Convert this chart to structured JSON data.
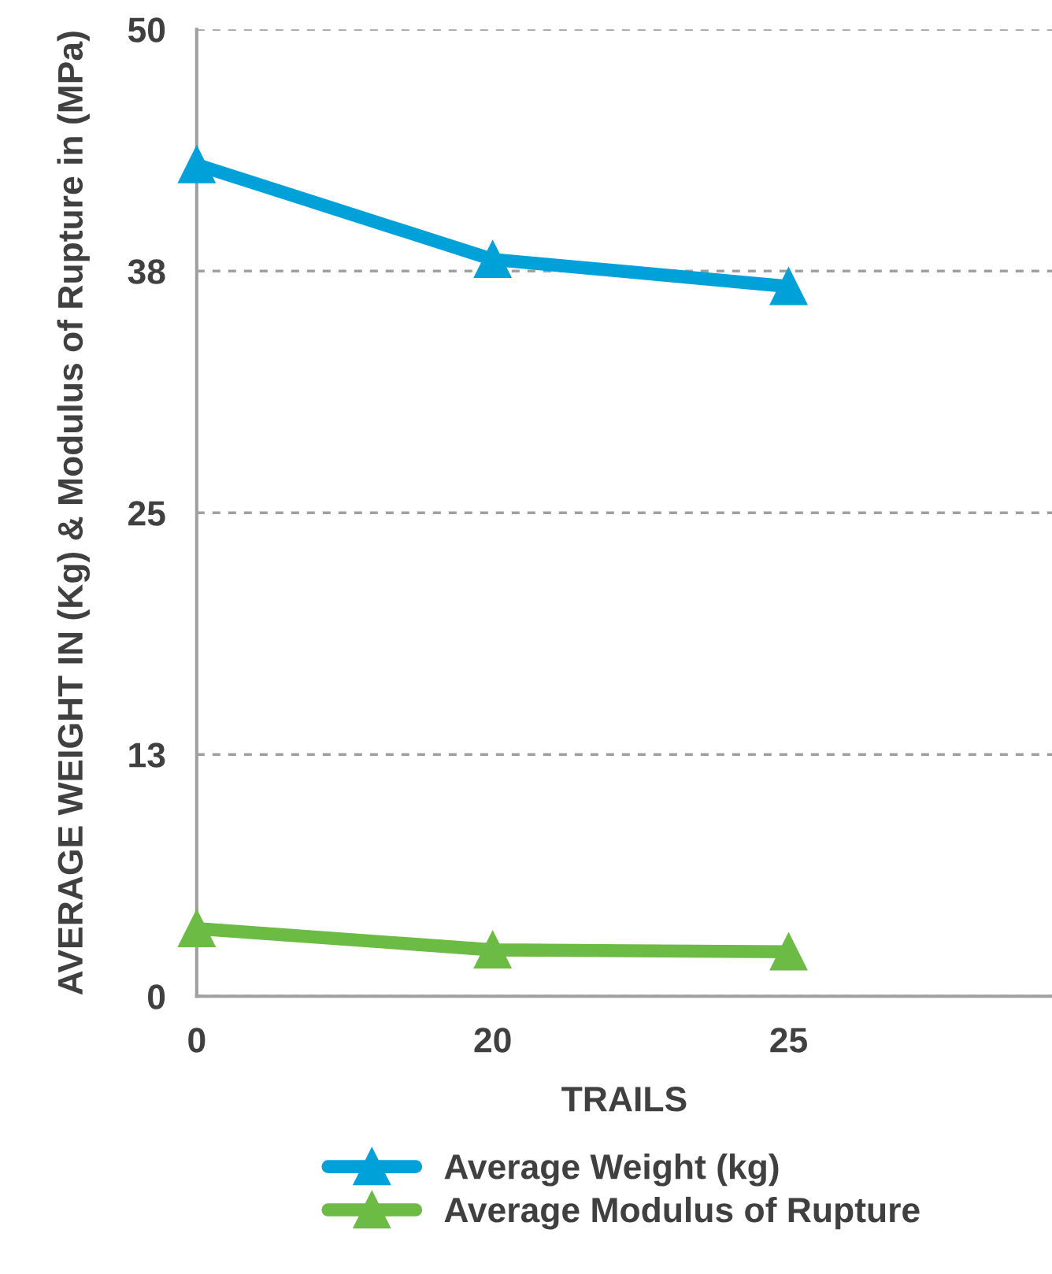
{
  "chart_data": {
    "type": "line",
    "xlabel": "TRAILS",
    "ylabel": "AVERAGE WEIGHT IN (Kg) & Modulus of Rupture in (MPa)",
    "categories": [
      "0",
      "20",
      "25"
    ],
    "series": [
      {
        "name": "Average Weight (kg)",
        "color": "#00a0d8",
        "values": [
          43.0,
          38.1,
          36.7
        ]
      },
      {
        "name": "Average Modulus of Rupture",
        "color": "#6cbb45",
        "values": [
          3.5,
          2.4,
          2.3
        ]
      }
    ],
    "ylim": [
      0,
      50
    ],
    "yticks": [
      0,
      {
        "value": 12.5,
        "label": "13"
      },
      25,
      {
        "value": 37.5,
        "label": "38"
      },
      50
    ],
    "grid": "y",
    "legend": "bottom",
    "marker": "triangle",
    "line_style": "solid"
  }
}
